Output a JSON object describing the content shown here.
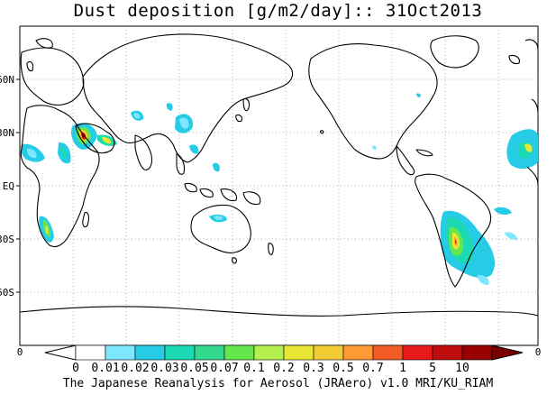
{
  "title": "Dust deposition [g/m2/day]:: 31Oct2013",
  "lat_labels": [
    "60N",
    "30N",
    "EQ",
    "30S",
    "60S"
  ],
  "lon_ticks_left": "0",
  "lon_ticks_right": "0",
  "colorbar": {
    "labels": [
      "0",
      "0.01",
      "0.02",
      "0.03",
      "0.05",
      "0.07",
      "0.1",
      "0.2",
      "0.3",
      "0.5",
      "0.7",
      "1",
      "5",
      "10"
    ],
    "colors": [
      "#ffffff",
      "#ffffff",
      "#7fe6ff",
      "#26cce6",
      "#1ad9b3",
      "#33d98c",
      "#66e64d",
      "#b3f04d",
      "#e6e633",
      "#f2cc33",
      "#ff9933",
      "#f25a26",
      "#e61a1a",
      "#bf0d0d",
      "#990000",
      "#7a0000"
    ]
  },
  "footer": "The Japanese Reanalysis for Aerosol (JRAero) v1.0 MRI/KU_RIAM"
}
